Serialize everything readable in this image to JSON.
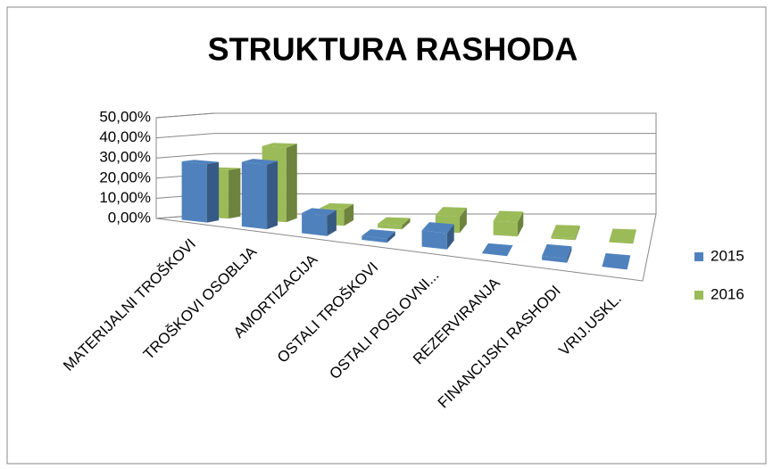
{
  "chart_data": {
    "type": "bar3d",
    "title": "STRUKTURA RASHODA",
    "categories": [
      "MATERIJALNI TROŠKOVI",
      "TROŠKOVI OSOBLJA",
      "AMORTIZACIJA",
      "OSTALI TROŠKOVI",
      "OSTALI POSLOVNI...",
      "REZERVIRANJA",
      "FINANCIJSKI RASHODI",
      "VRIJ.USKL."
    ],
    "series": [
      {
        "name": "2015",
        "color": "#4f81bd",
        "values": [
          29,
          32,
          10,
          2,
          8,
          0,
          2,
          0
        ]
      },
      {
        "name": "2016",
        "color": "#9bbb59",
        "values": [
          24,
          37,
          8,
          2,
          8,
          7,
          1,
          0
        ]
      }
    ],
    "ylim": [
      0,
      50
    ],
    "yticks": [
      {
        "value": 0,
        "label": "0,00%"
      },
      {
        "value": 10,
        "label": "10,00%"
      },
      {
        "value": 20,
        "label": "20,00%"
      },
      {
        "value": 30,
        "label": "30,00%"
      },
      {
        "value": 40,
        "label": "40,00%"
      },
      {
        "value": 50,
        "label": "50,00%"
      }
    ],
    "grid": true,
    "legend": "right"
  }
}
